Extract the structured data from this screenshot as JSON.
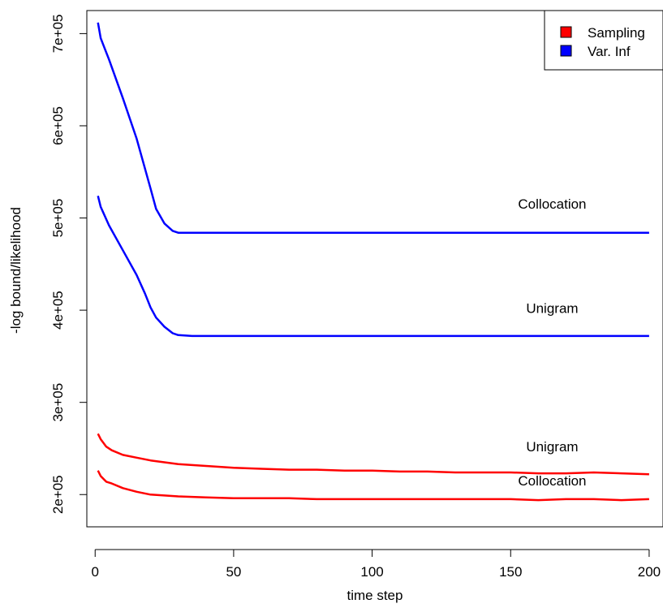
{
  "chart_data": {
    "type": "line",
    "title": "",
    "xlabel": "time step",
    "ylabel": "-log bound/likelihood",
    "xlim": [
      -3,
      205
    ],
    "ylim": [
      165000,
      725000
    ],
    "x_ticks": [
      0,
      50,
      100,
      150,
      200
    ],
    "x_tick_labels": [
      "0",
      "50",
      "100",
      "150",
      "200"
    ],
    "y_ticks": [
      200000,
      300000,
      400000,
      500000,
      600000,
      700000
    ],
    "y_tick_labels": [
      "2e+05",
      "3e+05",
      "4e+05",
      "5e+05",
      "6e+05",
      "7e+05"
    ],
    "grid": false,
    "legend": {
      "position": "top-right",
      "entries": [
        {
          "label": "Sampling",
          "color": "#ff0000"
        },
        {
          "label": "Var. Inf",
          "color": "#0000ff"
        }
      ]
    },
    "series": [
      {
        "color": "#0000ff",
        "points": [
          [
            1,
            712000
          ],
          [
            2,
            695000
          ],
          [
            5,
            672000
          ],
          [
            10,
            630000
          ],
          [
            15,
            586000
          ],
          [
            20,
            532000
          ],
          [
            22,
            510000
          ],
          [
            25,
            494000
          ],
          [
            28,
            486000
          ],
          [
            30,
            484000
          ],
          [
            40,
            484000
          ],
          [
            60,
            484000
          ],
          [
            100,
            484000
          ],
          [
            150,
            484000
          ],
          [
            200,
            484000
          ]
        ]
      },
      {
        "color": "#0000ff",
        "points": [
          [
            1,
            524000
          ],
          [
            2,
            512000
          ],
          [
            5,
            492000
          ],
          [
            10,
            465000
          ],
          [
            15,
            438000
          ],
          [
            18,
            418000
          ],
          [
            20,
            403000
          ],
          [
            22,
            392000
          ],
          [
            25,
            382000
          ],
          [
            28,
            375000
          ],
          [
            30,
            373000
          ],
          [
            35,
            372000
          ],
          [
            60,
            372000
          ],
          [
            100,
            372000
          ],
          [
            150,
            372000
          ],
          [
            200,
            372000
          ]
        ]
      },
      {
        "color": "#ff0000",
        "points": [
          [
            1,
            266000
          ],
          [
            2,
            260000
          ],
          [
            4,
            252000
          ],
          [
            6,
            248000
          ],
          [
            10,
            243000
          ],
          [
            15,
            240000
          ],
          [
            20,
            237000
          ],
          [
            25,
            235000
          ],
          [
            30,
            233000
          ],
          [
            40,
            231000
          ],
          [
            50,
            229000
          ],
          [
            60,
            228000
          ],
          [
            70,
            227000
          ],
          [
            80,
            227000
          ],
          [
            90,
            226000
          ],
          [
            100,
            226000
          ],
          [
            110,
            225000
          ],
          [
            120,
            225000
          ],
          [
            130,
            224000
          ],
          [
            140,
            224000
          ],
          [
            150,
            224000
          ],
          [
            160,
            223000
          ],
          [
            170,
            223000
          ],
          [
            180,
            224000
          ],
          [
            190,
            223000
          ],
          [
            200,
            222000
          ]
        ]
      },
      {
        "color": "#ff0000",
        "points": [
          [
            1,
            226000
          ],
          [
            2,
            220000
          ],
          [
            4,
            214000
          ],
          [
            6,
            212000
          ],
          [
            10,
            207000
          ],
          [
            15,
            203000
          ],
          [
            20,
            200000
          ],
          [
            25,
            199000
          ],
          [
            30,
            198000
          ],
          [
            40,
            197000
          ],
          [
            50,
            196000
          ],
          [
            60,
            196000
          ],
          [
            70,
            196000
          ],
          [
            80,
            195000
          ],
          [
            90,
            195000
          ],
          [
            100,
            195000
          ],
          [
            110,
            195000
          ],
          [
            120,
            195000
          ],
          [
            130,
            195000
          ],
          [
            140,
            195000
          ],
          [
            150,
            195000
          ],
          [
            160,
            194000
          ],
          [
            170,
            195000
          ],
          [
            180,
            195000
          ],
          [
            190,
            194000
          ],
          [
            200,
            195000
          ]
        ]
      }
    ],
    "annotations": [
      {
        "text": "Collocation",
        "x": 165,
        "y": 510000
      },
      {
        "text": "Unigram",
        "x": 165,
        "y": 397000
      },
      {
        "text": "Unigram",
        "x": 165,
        "y": 247000
      },
      {
        "text": "Collocation",
        "x": 165,
        "y": 210000
      }
    ]
  }
}
